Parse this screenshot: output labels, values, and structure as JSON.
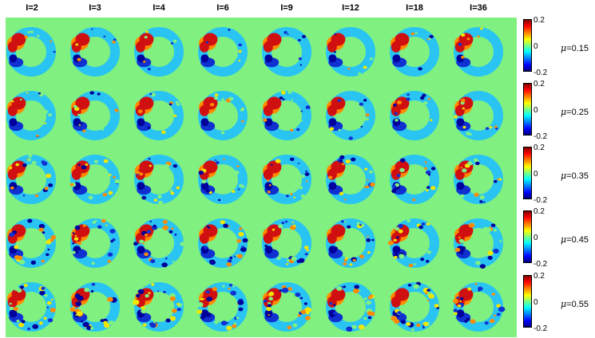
{
  "columns": [
    "I=2",
    "I=3",
    "I=4",
    "I=6",
    "I=9",
    "I=12",
    "I=18",
    "I=36"
  ],
  "rows": [
    {
      "mu_symbol": "μ",
      "mu_value": "=0.15",
      "tick_max": "0.2",
      "tick_mid": "0",
      "tick_min": "-0.2"
    },
    {
      "mu_symbol": "μ",
      "mu_value": "=0.25",
      "tick_max": "0.2",
      "tick_mid": "0",
      "tick_min": "-0.2"
    },
    {
      "mu_symbol": "μ",
      "mu_value": "=0.35",
      "tick_max": "0.2",
      "tick_mid": "0",
      "tick_min": "-0.2"
    },
    {
      "mu_symbol": "μ",
      "mu_value": "=0.45",
      "tick_max": "0.2",
      "tick_mid": "0",
      "tick_min": "-0.2"
    },
    {
      "mu_symbol": "μ",
      "mu_value": "=0.55",
      "tick_max": "0.2",
      "tick_mid": "0",
      "tick_min": "-0.2"
    }
  ],
  "colors": {
    "background": "#80f080",
    "ring_base": "#29c4f2",
    "hot": "#d01010",
    "warm": "#ff8a00",
    "yellow": "#f2e600",
    "cold": "#1030d0",
    "navy": "#00009a"
  }
}
